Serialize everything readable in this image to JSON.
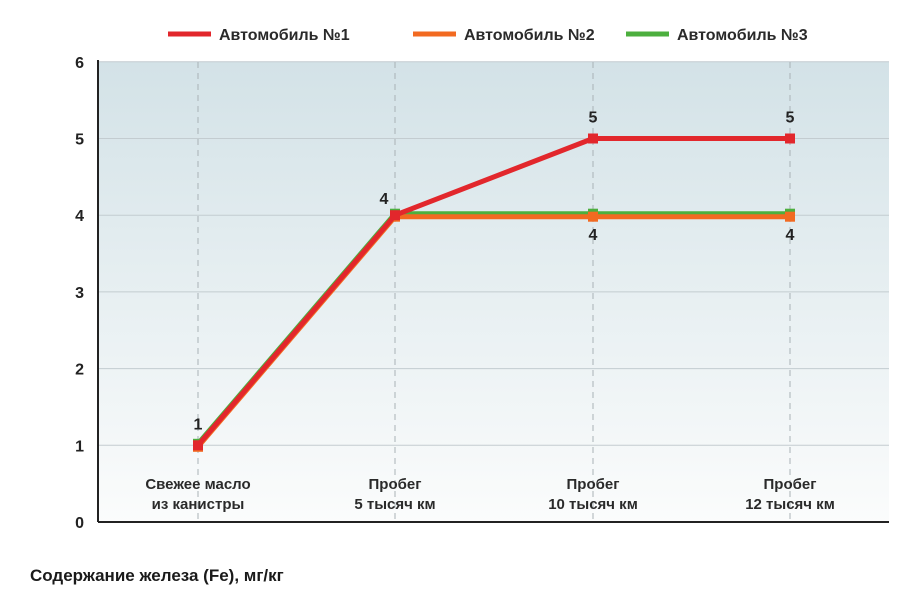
{
  "chart_data": {
    "type": "line",
    "caption": "Содержание железа (Fe), мг/кг",
    "categories": [
      [
        "Свежее масло",
        "из канистры"
      ],
      [
        "Пробег",
        "5 тысяч км"
      ],
      [
        "Пробег",
        "10 тысяч км"
      ],
      [
        "Пробег",
        "12 тысяч км"
      ]
    ],
    "ylim": [
      0,
      6
    ],
    "yticks": [
      0,
      1,
      2,
      3,
      4,
      5,
      6
    ],
    "grid": true,
    "legend_position": "top",
    "series": [
      {
        "name": "Автомобиль №1",
        "color": "#e2272c",
        "values": [
          1,
          4,
          5,
          5
        ]
      },
      {
        "name": "Автомобиль №2",
        "color": "#f26a21",
        "values": [
          1,
          4,
          4,
          4
        ]
      },
      {
        "name": "Автомобиль №3",
        "color": "#4caf3e",
        "values": [
          1,
          4,
          4,
          4
        ]
      }
    ],
    "data_labels": [
      {
        "category": 0,
        "value": 1,
        "text": "1",
        "side": "above"
      },
      {
        "category": 1,
        "value": 4,
        "text": "4",
        "side": "above-left"
      },
      {
        "category": 2,
        "value": 5,
        "text": "5",
        "side": "above"
      },
      {
        "category": 3,
        "value": 5,
        "text": "5",
        "side": "above"
      },
      {
        "category": 2,
        "value": 4,
        "text": "4",
        "side": "below"
      },
      {
        "category": 3,
        "value": 4,
        "text": "4",
        "side": "below"
      }
    ]
  }
}
